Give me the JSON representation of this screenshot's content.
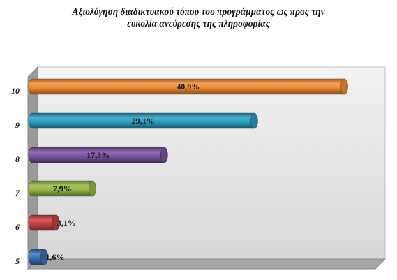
{
  "chart_data": {
    "type": "bar",
    "orientation": "horizontal",
    "title_lines": [
      "Αξιολόγηση διαδικτυακού τόπου του προγράμματος ως προς την",
      "ευκολία ανεύρεσης της πληροφορίας"
    ],
    "categories": [
      "10",
      "9",
      "8",
      "7",
      "6",
      "5"
    ],
    "values": [
      40.9,
      29.1,
      17.3,
      7.9,
      3.1,
      1.6
    ],
    "data_labels": [
      "40,9%",
      "29,1%",
      "17,3%",
      "7,9%",
      "3,1%",
      "1,6%"
    ],
    "colors": [
      "#f28e38",
      "#2fa0c2",
      "#7b56a3",
      "#98ba48",
      "#c94343",
      "#3f73b5"
    ],
    "xlim": [
      0,
      41.5
    ],
    "grid": false,
    "legend": "none"
  }
}
